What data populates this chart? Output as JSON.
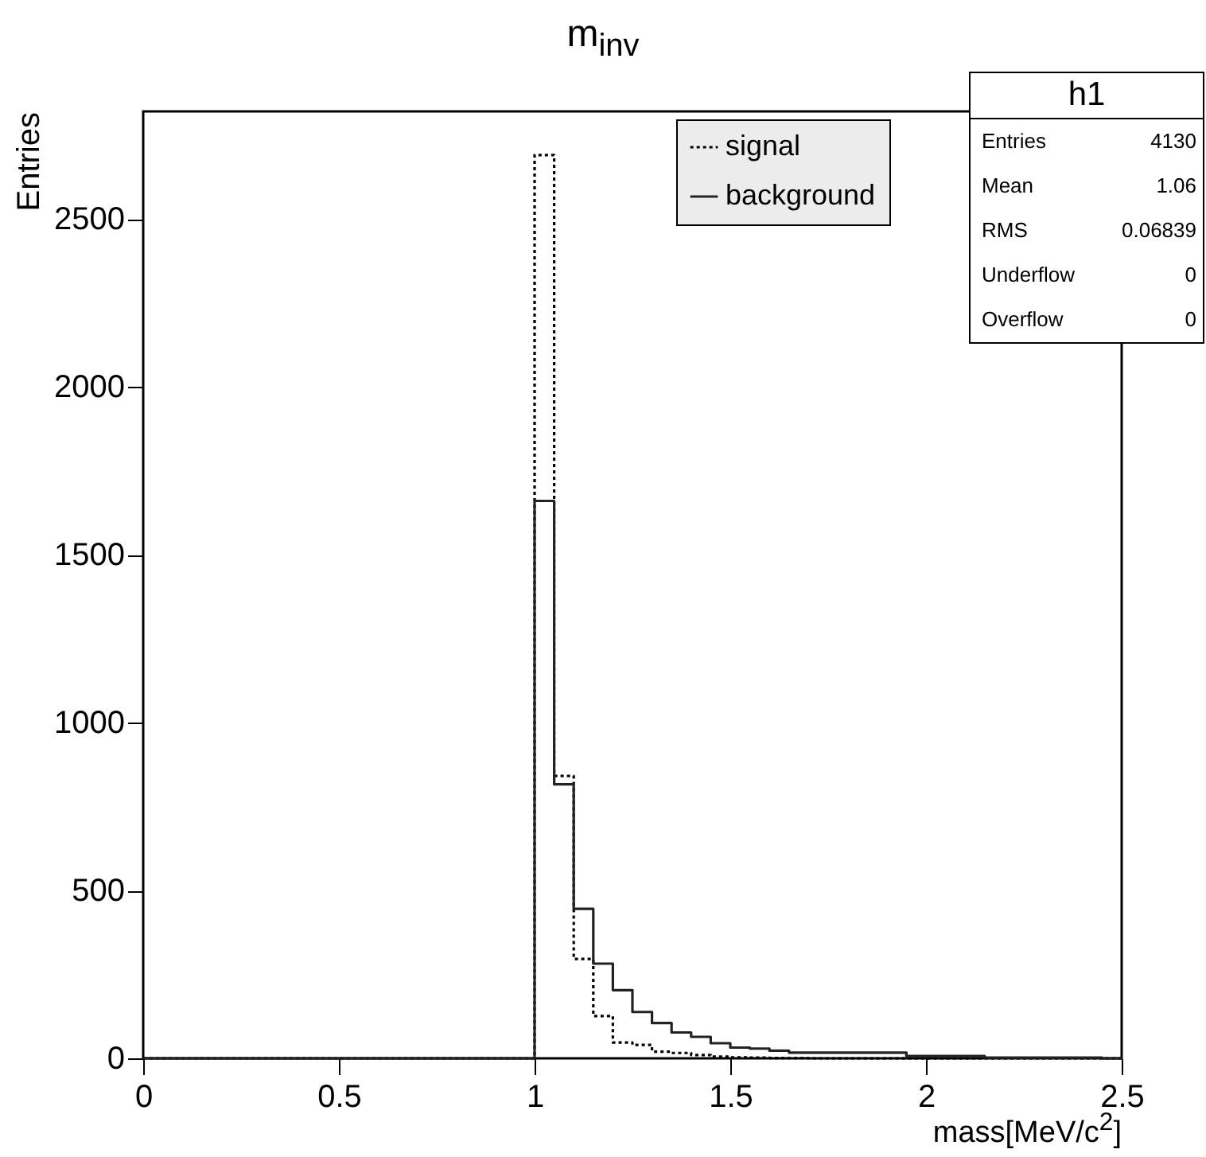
{
  "chart_data": {
    "type": "histogram",
    "title": "m$_{inv}$",
    "xlabel": "mass[MeV/c$^{2}$]",
    "ylabel": "Entries",
    "bins": [
      0,
      0.05,
      0.1,
      0.15,
      0.2,
      0.25,
      0.3,
      0.35,
      0.4,
      0.45,
      0.5,
      0.55,
      0.6,
      0.65,
      0.7,
      0.75,
      0.8,
      0.85,
      0.9,
      0.95,
      1,
      1.05,
      1.1,
      1.15,
      1.2,
      1.25,
      1.3,
      1.35,
      1.4,
      1.45,
      1.5,
      1.55,
      1.6,
      1.65,
      1.7,
      1.75,
      1.8,
      1.85,
      1.9,
      1.95,
      2,
      2.05,
      2.1,
      2.15,
      2.2,
      2.25,
      2.3,
      2.35,
      2.4,
      2.45,
      2.5
    ],
    "series": [
      {
        "name": "signal",
        "color": "#000000",
        "line_style": "dotted",
        "values": [
          0,
          0,
          0,
          0,
          0,
          0,
          0,
          0,
          0,
          0,
          0,
          0,
          0,
          0,
          0,
          0,
          0,
          0,
          0,
          0,
          2690,
          841,
          296,
          126,
          47,
          40,
          20,
          16,
          10,
          5,
          3,
          2,
          1,
          1,
          0,
          0,
          0,
          0,
          0,
          0,
          0,
          0,
          0,
          0,
          0,
          0,
          0,
          0,
          0,
          0
        ]
      },
      {
        "name": "background",
        "color": "#222222",
        "line_style": "solid",
        "values": [
          0,
          0,
          0,
          0,
          0,
          0,
          0,
          0,
          0,
          0,
          0,
          0,
          0,
          0,
          0,
          0,
          0,
          0,
          0,
          0,
          1660,
          816,
          445,
          282,
          203,
          138,
          105,
          77,
          64,
          45,
          32,
          29,
          23,
          17,
          17,
          17,
          17,
          17,
          17,
          7,
          7,
          7,
          7,
          2,
          2,
          2,
          2,
          2,
          2,
          0
        ]
      }
    ],
    "xlim": [
      0,
      2.5
    ],
    "xticks": [
      0,
      0.5,
      1,
      1.5,
      2,
      2.5
    ],
    "ylim": [
      0,
      2820
    ],
    "yticks": [
      0,
      500,
      1000,
      1500,
      2000,
      2500
    ],
    "legend": "top right",
    "annotations": [
      "h1",
      "Entries",
      "4130",
      "Mean",
      "1.06",
      "RMS",
      "0.06839",
      "Underflow",
      "0",
      "Overflow",
      "0"
    ]
  }
}
